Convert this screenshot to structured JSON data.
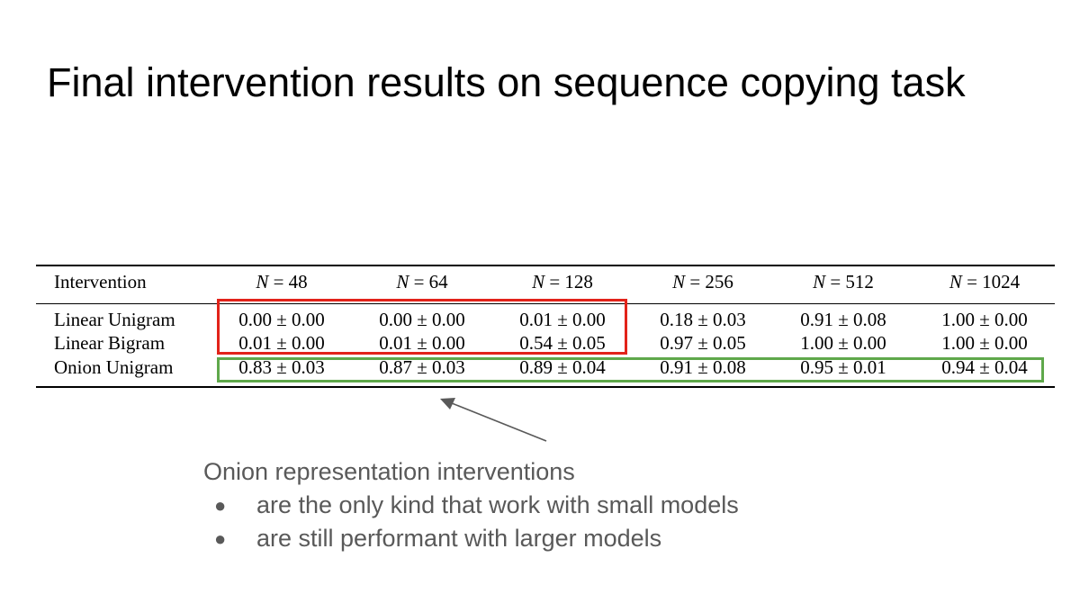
{
  "slide": {
    "title": "Final intervention results on sequence copying task"
  },
  "table": {
    "header": {
      "first": "Intervention",
      "columns": [
        {
          "var": "N",
          "eq": "= 48"
        },
        {
          "var": "N",
          "eq": "= 64"
        },
        {
          "var": "N",
          "eq": "= 128"
        },
        {
          "var": "N",
          "eq": "= 256"
        },
        {
          "var": "N",
          "eq": "= 512"
        },
        {
          "var": "N",
          "eq": "= 1024"
        }
      ]
    },
    "rows": [
      {
        "label": "Linear Unigram",
        "cells": [
          "0.00 ± 0.00",
          "0.00 ± 0.00",
          "0.01 ± 0.00",
          "0.18 ± 0.03",
          "0.91 ± 0.08",
          "1.00 ± 0.00"
        ]
      },
      {
        "label": "Linear Bigram",
        "cells": [
          "0.01 ± 0.00",
          "0.01 ± 0.00",
          "0.54 ± 0.05",
          "0.97 ± 0.05",
          "1.00 ± 0.00",
          "1.00 ± 0.00"
        ]
      },
      {
        "label": "Onion Unigram",
        "cells": [
          "0.83 ± 0.03",
          "0.87 ± 0.03",
          "0.89 ± 0.04",
          "0.91 ± 0.08",
          "0.95 ± 0.01",
          "0.94 ± 0.04"
        ]
      }
    ]
  },
  "highlights": {
    "red": "#e2231a",
    "green": "#5fa84b"
  },
  "annotation": {
    "heading": "Onion representation interventions",
    "bullets": [
      "are the only kind that work with small models",
      "are still performant with larger models"
    ],
    "text_color": "#595959"
  }
}
